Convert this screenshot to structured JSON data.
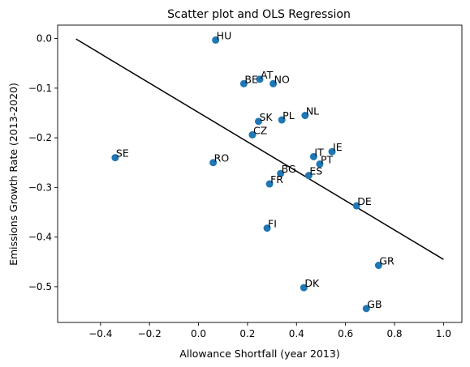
{
  "chart_data": {
    "type": "scatter",
    "title": "Scatter plot and OLS Regression",
    "xlabel": "Allowance Shortfall (year 2013)",
    "ylabel": "Emissions Growth Rate (2013-2020)",
    "xlim": [
      -0.575,
      1.075
    ],
    "ylim": [
      -0.572,
      0.027
    ],
    "xticks": [
      -0.4,
      -0.2,
      0.0,
      0.2,
      0.4,
      0.6,
      0.8,
      1.0
    ],
    "xtick_labels": [
      "−0.4",
      "−0.2",
      "0.0",
      "0.2",
      "0.4",
      "0.6",
      "0.8",
      "1.0"
    ],
    "yticks": [
      0.0,
      -0.1,
      -0.2,
      -0.3,
      -0.4,
      -0.5
    ],
    "ytick_labels": [
      "0.0",
      "−0.1",
      "−0.2",
      "−0.3",
      "−0.4",
      "−0.5"
    ],
    "grid": false,
    "point_color": "#1f77b4",
    "line_color": "#000000",
    "points": [
      {
        "label": "HU",
        "x": 0.07,
        "y": -0.003
      },
      {
        "label": "AT",
        "x": 0.25,
        "y": -0.082
      },
      {
        "label": "BE",
        "x": 0.185,
        "y": -0.091
      },
      {
        "label": "NO",
        "x": 0.305,
        "y": -0.091
      },
      {
        "label": "NL",
        "x": 0.435,
        "y": -0.155
      },
      {
        "label": "SK",
        "x": 0.245,
        "y": -0.167
      },
      {
        "label": "PL",
        "x": 0.34,
        "y": -0.164
      },
      {
        "label": "CZ",
        "x": 0.22,
        "y": -0.194
      },
      {
        "label": "IE",
        "x": 0.545,
        "y": -0.228
      },
      {
        "label": "IT",
        "x": 0.47,
        "y": -0.238
      },
      {
        "label": "PT",
        "x": 0.495,
        "y": -0.253
      },
      {
        "label": "SE",
        "x": -0.34,
        "y": -0.24
      },
      {
        "label": "RO",
        "x": 0.06,
        "y": -0.25
      },
      {
        "label": "BG",
        "x": 0.335,
        "y": -0.272
      },
      {
        "label": "ES",
        "x": 0.45,
        "y": -0.276
      },
      {
        "label": "FR",
        "x": 0.29,
        "y": -0.293
      },
      {
        "label": "DE",
        "x": 0.645,
        "y": -0.337
      },
      {
        "label": "FI",
        "x": 0.28,
        "y": -0.382
      },
      {
        "label": "GR",
        "x": 0.735,
        "y": -0.457
      },
      {
        "label": "DK",
        "x": 0.43,
        "y": -0.502
      },
      {
        "label": "GB",
        "x": 0.685,
        "y": -0.544
      }
    ],
    "regression_line": {
      "x": [
        -0.5,
        1.0
      ],
      "y": [
        -0.001,
        -0.445
      ]
    }
  }
}
